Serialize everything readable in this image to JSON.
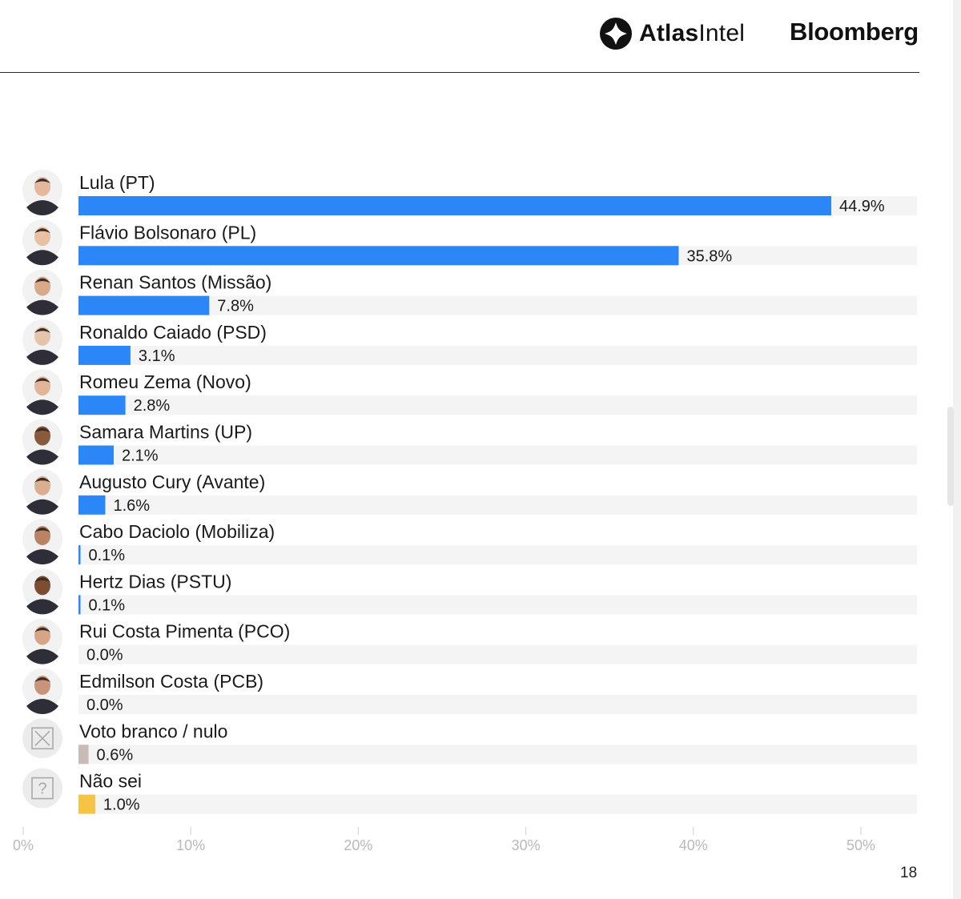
{
  "header": {
    "atlas_brand_bold": "Atlas",
    "atlas_brand_light": "Intel",
    "bloomberg": "Bloomberg"
  },
  "page_number": "18",
  "colors": {
    "candidate_bar": "#2b87f7",
    "branco_nulo_bar": "#c9bcb7",
    "nao_sei_bar": "#f6c445",
    "track": "#f4f4f4",
    "tick_label": "#b9b9b9"
  },
  "chart_data": {
    "type": "bar",
    "orientation": "horizontal",
    "categories": [
      "Lula (PT)",
      "Flávio Bolsonaro (PL)",
      "Renan Santos (Missão)",
      "Ronaldo Caiado (PSD)",
      "Romeu Zema (Novo)",
      "Samara Martins (UP)",
      "Augusto Cury (Avante)",
      "Cabo Daciolo (Mobiliza)",
      "Hertz Dias (PSTU)",
      "Rui Costa Pimenta (PCO)",
      "Edmilson Costa (PCB)",
      "Voto branco / nulo",
      "Não sei"
    ],
    "values": [
      44.9,
      35.8,
      7.8,
      3.1,
      2.8,
      2.1,
      1.6,
      0.1,
      0.1,
      0.0,
      0.0,
      0.6,
      1.0
    ],
    "value_labels": [
      "44.9%",
      "35.8%",
      "7.8%",
      "3.1%",
      "2.8%",
      "2.1%",
      "1.6%",
      "0.1%",
      "0.1%",
      "0.0%",
      "0.0%",
      "0.6%",
      "1.0%"
    ],
    "bar_color_keys": [
      "candidate_bar",
      "candidate_bar",
      "candidate_bar",
      "candidate_bar",
      "candidate_bar",
      "candidate_bar",
      "candidate_bar",
      "candidate_bar",
      "candidate_bar",
      "candidate_bar",
      "candidate_bar",
      "branco_nulo_bar",
      "nao_sei_bar"
    ],
    "row_icons": [
      "avatar-photo",
      "avatar-photo",
      "avatar-photo",
      "avatar-photo",
      "avatar-photo",
      "avatar-photo",
      "avatar-photo",
      "avatar-photo",
      "avatar-photo",
      "avatar-photo",
      "avatar-photo",
      "x-box-icon",
      "question-box-icon"
    ],
    "x_ticks": [
      0,
      10,
      20,
      30,
      40,
      50
    ],
    "x_tick_labels": [
      "0%",
      "10%",
      "20%",
      "30%",
      "40%",
      "50%"
    ],
    "xlim": [
      0,
      50
    ],
    "title": "",
    "xlabel": "",
    "ylabel": "",
    "grid": false,
    "legend": "none"
  }
}
